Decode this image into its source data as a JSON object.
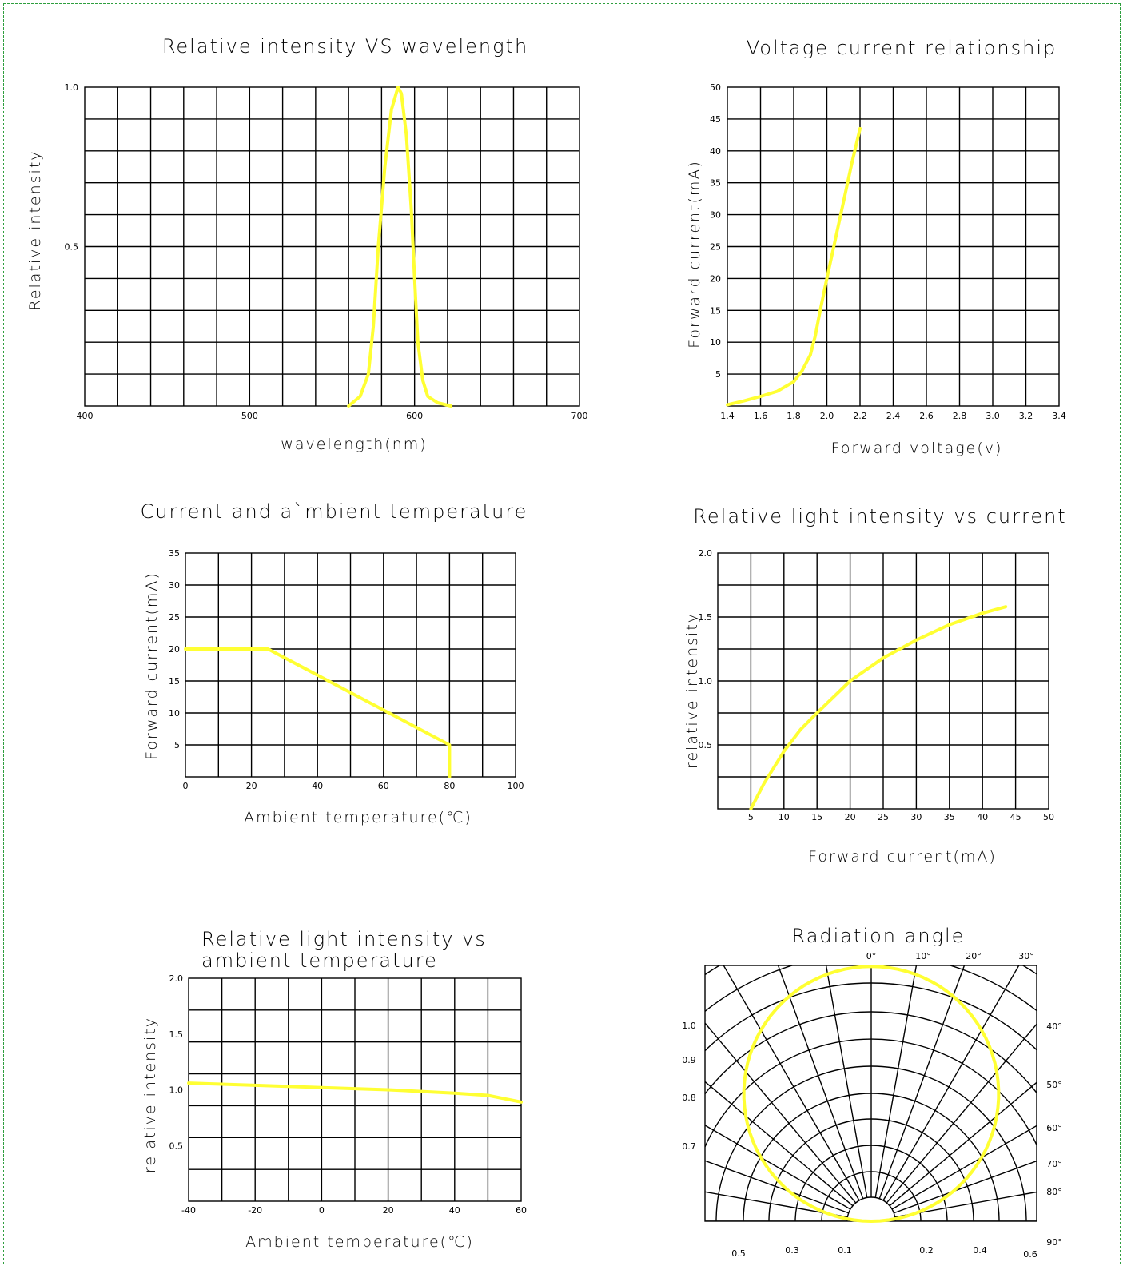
{
  "colors": {
    "curve": "#ffff33",
    "grid": "#000000",
    "border": "#2e9e3e"
  },
  "chart_data": [
    {
      "id": "spectrum",
      "type": "line",
      "title": "Relative intensity  VS  wavelength",
      "xlabel": "wavelength(nm)",
      "ylabel": "Relative intensity",
      "xlim": [
        400,
        700
      ],
      "ylim": [
        0,
        1.0
      ],
      "x_ticks": [
        "400",
        "500",
        "600",
        "700"
      ],
      "x_tick_values": [
        400,
        500,
        600,
        700
      ],
      "y_ticks": [
        "0.5",
        "1.0"
      ],
      "y_tick_values": [
        0.5,
        1.0
      ],
      "grid_cols": 15,
      "grid_rows": 10,
      "series": [
        {
          "x": [
            560,
            567,
            572,
            575,
            578,
            582,
            586,
            590,
            592,
            595,
            598,
            600,
            602,
            605,
            608,
            614,
            622
          ],
          "y": [
            0.0,
            0.03,
            0.1,
            0.25,
            0.5,
            0.75,
            0.93,
            1.0,
            0.98,
            0.85,
            0.62,
            0.4,
            0.2,
            0.08,
            0.03,
            0.01,
            0.0
          ]
        }
      ]
    },
    {
      "id": "iv",
      "type": "line",
      "title": "Voltage current relationship",
      "xlabel": "Forward voltage(v)",
      "ylabel": "Forward current(mA)",
      "xlim": [
        1.4,
        3.4
      ],
      "ylim": [
        0,
        50
      ],
      "x_ticks": [
        "1.4",
        "1.6",
        "1.8",
        "2.0",
        "2.2",
        "2.4",
        "2.6",
        "2.8",
        "3.0",
        "3.2",
        "3.4"
      ],
      "x_tick_values": [
        1.4,
        1.6,
        1.8,
        2.0,
        2.2,
        2.4,
        2.6,
        2.8,
        3.0,
        3.2,
        3.4
      ],
      "y_ticks": [
        "5",
        "10",
        "15",
        "20",
        "25",
        "30",
        "35",
        "40",
        "45",
        "50"
      ],
      "y_tick_values": [
        5,
        10,
        15,
        20,
        25,
        30,
        35,
        40,
        45,
        50
      ],
      "grid_cols": 10,
      "grid_rows": 10,
      "series": [
        {
          "x": [
            1.4,
            1.5,
            1.6,
            1.7,
            1.8,
            1.85,
            1.9,
            1.93,
            1.96,
            2.0,
            2.05,
            2.1,
            2.15,
            2.2
          ],
          "y": [
            0.2,
            0.8,
            1.5,
            2.3,
            3.8,
            5.5,
            8,
            11,
            15,
            20,
            26,
            32,
            38,
            43.5
          ]
        }
      ]
    },
    {
      "id": "derating",
      "type": "line",
      "title": "Current and a`mbient temperature",
      "xlabel": "Ambient temperature(℃)",
      "ylabel": "Forward current(mA)",
      "xlim": [
        0,
        100
      ],
      "ylim": [
        0,
        35
      ],
      "x_ticks": [
        "0",
        "20",
        "40",
        "60",
        "80",
        "100"
      ],
      "x_tick_values": [
        0,
        20,
        40,
        60,
        80,
        100
      ],
      "y_ticks": [
        "5",
        "10",
        "15",
        "20",
        "25",
        "30",
        "35"
      ],
      "y_tick_values": [
        5,
        10,
        15,
        20,
        25,
        30,
        35
      ],
      "grid_cols": 10,
      "grid_rows": 7,
      "series": [
        {
          "x": [
            0,
            25,
            80,
            80
          ],
          "y": [
            20,
            20,
            5,
            0
          ]
        }
      ]
    },
    {
      "id": "intensity-current",
      "type": "line",
      "title": "Relative light intensity vs current",
      "xlabel": "Forward current(mA)",
      "ylabel": "relative intensity",
      "xlim": [
        0,
        50
      ],
      "ylim": [
        0,
        2.0
      ],
      "x_ticks": [
        "5",
        "10",
        "15",
        "20",
        "25",
        "30",
        "35",
        "40",
        "45",
        "50"
      ],
      "x_tick_values": [
        5,
        10,
        15,
        20,
        25,
        30,
        35,
        40,
        45,
        50
      ],
      "y_ticks": [
        "0.5",
        "1.0",
        "1.5",
        "2.0"
      ],
      "y_tick_values": [
        0.5,
        1.0,
        1.5,
        2.0
      ],
      "grid_cols": 10,
      "grid_rows": 8,
      "series": [
        {
          "x": [
            5,
            7,
            10,
            12.5,
            15,
            20,
            25,
            30,
            35,
            40,
            43.5
          ],
          "y": [
            0.0,
            0.2,
            0.45,
            0.62,
            0.75,
            1.0,
            1.18,
            1.32,
            1.44,
            1.53,
            1.58
          ]
        }
      ]
    },
    {
      "id": "intensity-temperature",
      "type": "line",
      "title": "Relative light intensity vs\nambient temperature",
      "title_lines": [
        "Relative light intensity vs",
        "ambient temperature"
      ],
      "xlabel": "Ambient temperature(℃)",
      "ylabel": "relative intensity",
      "xlim": [
        -40,
        60
      ],
      "ylim": [
        0,
        2.0
      ],
      "x_ticks": [
        "-40",
        "-20",
        "0",
        "20",
        "40",
        "60"
      ],
      "x_tick_values": [
        -40,
        -20,
        0,
        20,
        40,
        60
      ],
      "y_ticks": [
        "0.5",
        "1.0",
        "1.5",
        "2.0"
      ],
      "y_tick_values": [
        0.5,
        1.0,
        1.5,
        2.0
      ],
      "grid_cols": 10,
      "grid_rows": 7,
      "series": [
        {
          "x": [
            -40,
            -20,
            0,
            20,
            40,
            50,
            60
          ],
          "y": [
            1.06,
            1.04,
            1.02,
            1.0,
            0.97,
            0.95,
            0.89
          ]
        }
      ]
    },
    {
      "id": "radiation",
      "type": "polar",
      "title": "Radiation angle",
      "angle_labels": [
        "0°",
        "10°",
        "20°",
        "30°",
        "40°",
        "50°",
        "60°",
        "70°",
        "80°",
        "90°"
      ],
      "radial_labels_left": [
        "1.0",
        "0.9",
        "0.8",
        "0.7"
      ],
      "bottom_labels": [
        "0.5",
        "0.3",
        "0.1",
        "0.2",
        "0.4",
        "0.6"
      ],
      "pattern": "circular",
      "series": [
        {
          "angle_deg": [
            -90,
            -60,
            -30,
            0,
            30,
            60,
            90
          ],
          "relative_intensity": [
            0.0,
            0.5,
            0.87,
            1.0,
            0.87,
            0.5,
            0.0
          ]
        }
      ]
    }
  ]
}
